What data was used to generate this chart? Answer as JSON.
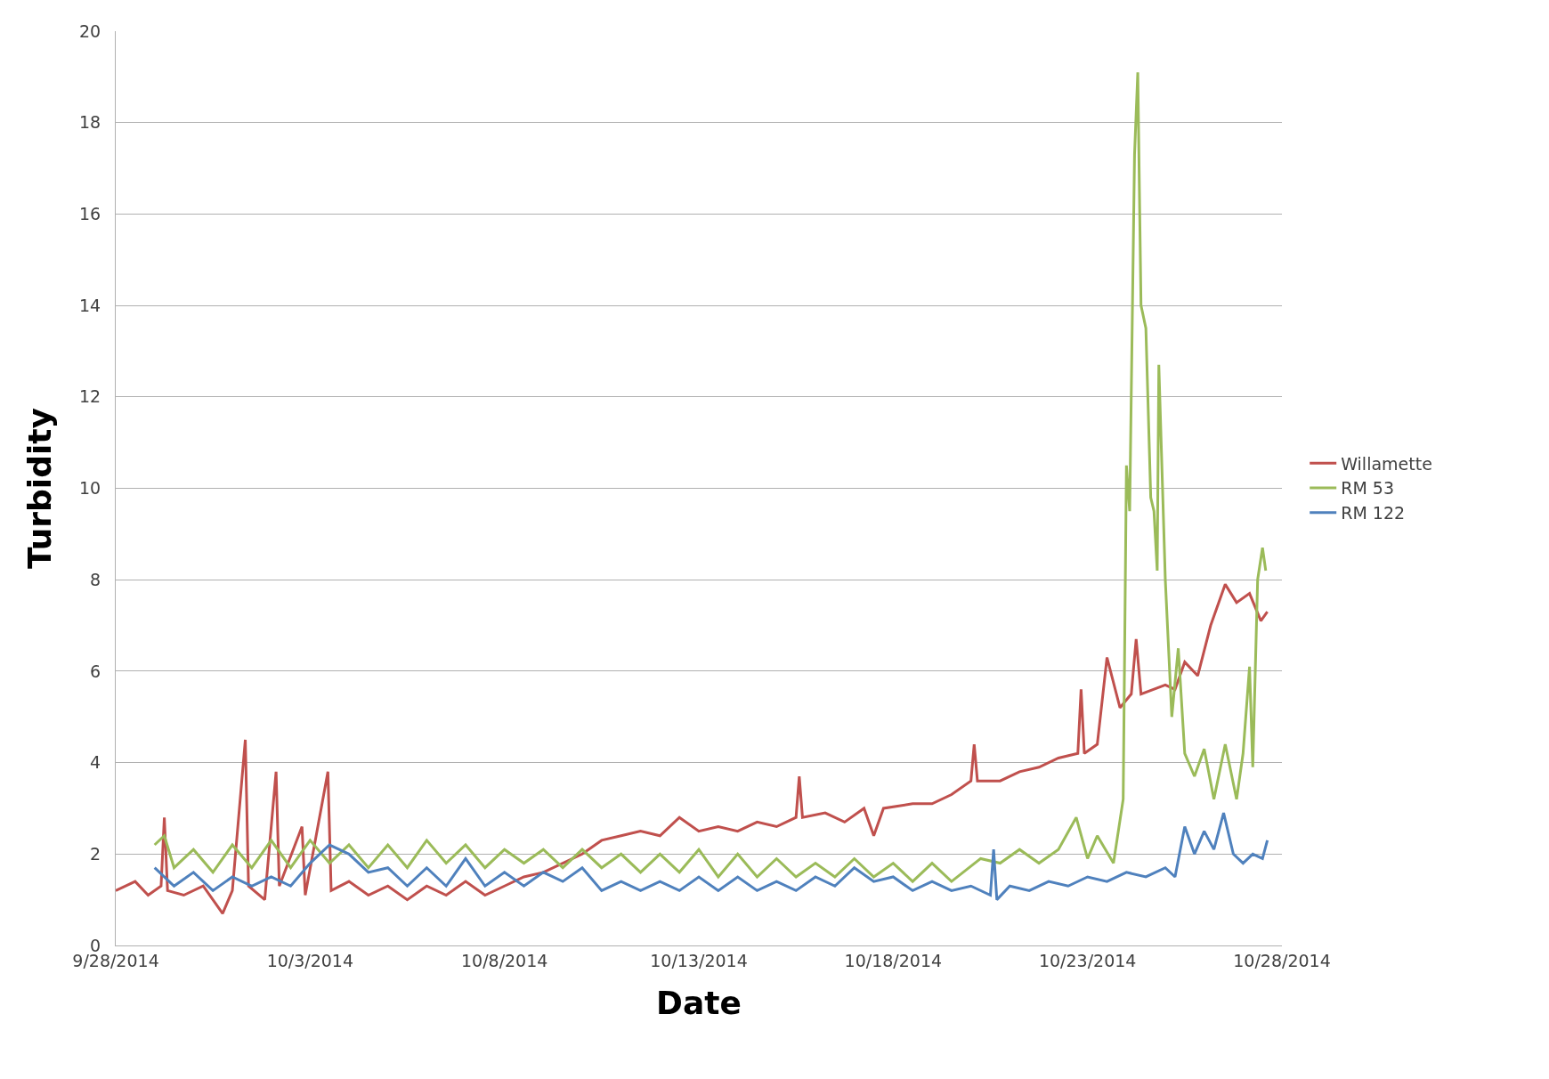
{
  "chart_data": {
    "type": "line",
    "xlabel": "Date",
    "ylabel": "Turbidity",
    "xlim": [
      "2014-09-28",
      "2014-10-28"
    ],
    "xticks": [
      {
        "value": "2014-09-28",
        "label": "9/28/2014"
      },
      {
        "value": "2014-10-03",
        "label": "10/3/2014"
      },
      {
        "value": "2014-10-08",
        "label": "10/8/2014"
      },
      {
        "value": "2014-10-13",
        "label": "10/13/2014"
      },
      {
        "value": "2014-10-18",
        "label": "10/18/2014"
      },
      {
        "value": "2014-10-23",
        "label": "10/23/2014"
      },
      {
        "value": "2014-10-28",
        "label": "10/28/2014"
      }
    ],
    "ylim": [
      0,
      20
    ],
    "yticks": [
      0,
      2,
      4,
      6,
      8,
      10,
      12,
      14,
      16,
      18,
      20
    ],
    "grid": "y",
    "legend": "right",
    "marker": "none",
    "line_style": "solid",
    "series": [
      {
        "name": "Willamette",
        "color": "#c0504d",
        "x": [
          "2014-09-28T00:00",
          "2014-09-28T12:00",
          "2014-09-28T20:00",
          "2014-09-29T04:00",
          "2014-09-29T06:00",
          "2014-09-29T08:00",
          "2014-09-29T18:00",
          "2014-09-30T06:00",
          "2014-09-30T18:00",
          "2014-10-01T00:00",
          "2014-10-01T08:00",
          "2014-10-01T10:00",
          "2014-10-01T20:00",
          "2014-10-02T03:00",
          "2014-10-02T05:00",
          "2014-10-02T19:00",
          "2014-10-02T21:00",
          "2014-10-03T11:00",
          "2014-10-03T13:00",
          "2014-10-04T00:00",
          "2014-10-04T12:00",
          "2014-10-05T00:00",
          "2014-10-05T12:00",
          "2014-10-06T00:00",
          "2014-10-06T12:00",
          "2014-10-07T00:00",
          "2014-10-07T12:00",
          "2014-10-08T00:00",
          "2014-10-08T12:00",
          "2014-10-09T00:00",
          "2014-10-09T12:00",
          "2014-10-10T00:00",
          "2014-10-10T12:00",
          "2014-10-11T00:00",
          "2014-10-11T12:00",
          "2014-10-12T00:00",
          "2014-10-12T12:00",
          "2014-10-13T00:00",
          "2014-10-13T12:00",
          "2014-10-14T00:00",
          "2014-10-14T12:00",
          "2014-10-15T00:00",
          "2014-10-15T12:00",
          "2014-10-15T14:00",
          "2014-10-15T16:00",
          "2014-10-16T06:00",
          "2014-10-16T18:00",
          "2014-10-17T06:00",
          "2014-10-17T12:00",
          "2014-10-17T18:00",
          "2014-10-18T12:00",
          "2014-10-19T00:00",
          "2014-10-19T12:00",
          "2014-10-20T00:00",
          "2014-10-20T02:00",
          "2014-10-20T04:00",
          "2014-10-20T18:00",
          "2014-10-21T06:00",
          "2014-10-21T18:00",
          "2014-10-22T06:00",
          "2014-10-22T18:00",
          "2014-10-22T20:00",
          "2014-10-22T22:00",
          "2014-10-23T06:00",
          "2014-10-23T12:00",
          "2014-10-23T20:00",
          "2014-10-24T03:00",
          "2014-10-24T06:00",
          "2014-10-24T09:00",
          "2014-10-25T00:00",
          "2014-10-25T06:00",
          "2014-10-25T12:00",
          "2014-10-25T20:00",
          "2014-10-26T04:00",
          "2014-10-26T13:00",
          "2014-10-26T20:00",
          "2014-10-27T04:00",
          "2014-10-27T11:00",
          "2014-10-27T15:00"
        ],
        "values": [
          1.2,
          1.4,
          1.1,
          1.3,
          2.8,
          1.2,
          1.1,
          1.3,
          0.7,
          1.2,
          4.5,
          1.3,
          1.0,
          3.8,
          1.3,
          2.6,
          1.1,
          3.8,
          1.2,
          1.4,
          1.1,
          1.3,
          1.0,
          1.3,
          1.1,
          1.4,
          1.1,
          1.3,
          1.5,
          1.6,
          1.8,
          2.0,
          2.3,
          2.4,
          2.5,
          2.4,
          2.8,
          2.5,
          2.6,
          2.5,
          2.7,
          2.6,
          2.8,
          3.7,
          2.8,
          2.9,
          2.7,
          3.0,
          2.4,
          3.0,
          3.1,
          3.1,
          3.3,
          3.6,
          4.4,
          3.6,
          3.6,
          3.8,
          3.9,
          4.1,
          4.2,
          5.6,
          4.2,
          4.4,
          6.3,
          5.2,
          5.5,
          6.7,
          5.5,
          5.7,
          5.6,
          6.2,
          5.9,
          7.0,
          7.9,
          7.5,
          7.7,
          7.1,
          7.3
        ]
      },
      {
        "name": "RM 53",
        "color": "#9bbb59",
        "x": [
          "2014-09-29T00:00",
          "2014-09-29T06:00",
          "2014-09-29T12:00",
          "2014-09-30T00:00",
          "2014-09-30T12:00",
          "2014-10-01T00:00",
          "2014-10-01T12:00",
          "2014-10-02T00:00",
          "2014-10-02T12:00",
          "2014-10-03T00:00",
          "2014-10-03T12:00",
          "2014-10-04T00:00",
          "2014-10-04T12:00",
          "2014-10-05T00:00",
          "2014-10-05T12:00",
          "2014-10-06T00:00",
          "2014-10-06T12:00",
          "2014-10-07T00:00",
          "2014-10-07T12:00",
          "2014-10-08T00:00",
          "2014-10-08T12:00",
          "2014-10-09T00:00",
          "2014-10-09T12:00",
          "2014-10-10T00:00",
          "2014-10-10T12:00",
          "2014-10-11T00:00",
          "2014-10-11T12:00",
          "2014-10-12T00:00",
          "2014-10-12T12:00",
          "2014-10-13T00:00",
          "2014-10-13T12:00",
          "2014-10-14T00:00",
          "2014-10-14T12:00",
          "2014-10-15T00:00",
          "2014-10-15T12:00",
          "2014-10-16T00:00",
          "2014-10-16T12:00",
          "2014-10-17T00:00",
          "2014-10-17T12:00",
          "2014-10-18T00:00",
          "2014-10-18T12:00",
          "2014-10-19T00:00",
          "2014-10-19T12:00",
          "2014-10-20T06:00",
          "2014-10-20T18:00",
          "2014-10-21T06:00",
          "2014-10-21T18:00",
          "2014-10-22T06:00",
          "2014-10-22T17:00",
          "2014-10-23T00:00",
          "2014-10-23T06:00",
          "2014-10-23T16:00",
          "2014-10-23T22:00",
          "2014-10-24T00:00",
          "2014-10-24T02:00",
          "2014-10-24T05:00",
          "2014-10-24T07:00",
          "2014-10-24T09:00",
          "2014-10-24T12:00",
          "2014-10-24T15:00",
          "2014-10-24T17:00",
          "2014-10-24T19:00",
          "2014-10-24T20:00",
          "2014-10-25T00:00",
          "2014-10-25T04:00",
          "2014-10-25T08:00",
          "2014-10-25T12:00",
          "2014-10-25T18:00",
          "2014-10-26T00:00",
          "2014-10-26T06:00",
          "2014-10-26T13:00",
          "2014-10-26T20:00",
          "2014-10-27T00:00",
          "2014-10-27T04:00",
          "2014-10-27T06:00",
          "2014-10-27T09:00",
          "2014-10-27T12:00",
          "2014-10-27T14:00"
        ],
        "values": [
          2.2,
          2.4,
          1.7,
          2.1,
          1.6,
          2.2,
          1.7,
          2.3,
          1.7,
          2.3,
          1.8,
          2.2,
          1.7,
          2.2,
          1.7,
          2.3,
          1.8,
          2.2,
          1.7,
          2.1,
          1.8,
          2.1,
          1.7,
          2.1,
          1.7,
          2.0,
          1.6,
          2.0,
          1.6,
          2.1,
          1.5,
          2.0,
          1.5,
          1.9,
          1.5,
          1.8,
          1.5,
          1.9,
          1.5,
          1.8,
          1.4,
          1.8,
          1.4,
          1.9,
          1.8,
          2.1,
          1.8,
          2.1,
          2.8,
          1.9,
          2.4,
          1.8,
          3.2,
          10.5,
          9.5,
          17.3,
          19.1,
          14.0,
          13.5,
          9.8,
          9.5,
          8.2,
          12.7,
          8.0,
          5.0,
          6.5,
          4.2,
          3.7,
          4.3,
          3.2,
          4.4,
          3.2,
          4.2,
          6.1,
          3.9,
          8.0,
          8.7,
          8.2
        ]
      },
      {
        "name": "RM 122",
        "color": "#4f81bd",
        "x": [
          "2014-09-29T00:00",
          "2014-09-29T12:00",
          "2014-09-30T00:00",
          "2014-09-30T12:00",
          "2014-10-01T00:00",
          "2014-10-01T12:00",
          "2014-10-02T00:00",
          "2014-10-02T12:00",
          "2014-10-03T00:00",
          "2014-10-03T12:00",
          "2014-10-04T00:00",
          "2014-10-04T12:00",
          "2014-10-05T00:00",
          "2014-10-05T12:00",
          "2014-10-06T00:00",
          "2014-10-06T12:00",
          "2014-10-07T00:00",
          "2014-10-07T12:00",
          "2014-10-08T00:00",
          "2014-10-08T12:00",
          "2014-10-09T00:00",
          "2014-10-09T12:00",
          "2014-10-10T00:00",
          "2014-10-10T12:00",
          "2014-10-11T00:00",
          "2014-10-11T12:00",
          "2014-10-12T00:00",
          "2014-10-12T12:00",
          "2014-10-13T00:00",
          "2014-10-13T12:00",
          "2014-10-14T00:00",
          "2014-10-14T12:00",
          "2014-10-15T00:00",
          "2014-10-15T12:00",
          "2014-10-16T00:00",
          "2014-10-16T12:00",
          "2014-10-17T00:00",
          "2014-10-17T12:00",
          "2014-10-18T00:00",
          "2014-10-18T12:00",
          "2014-10-19T00:00",
          "2014-10-19T12:00",
          "2014-10-20T00:00",
          "2014-10-20T12:00",
          "2014-10-20T14:00",
          "2014-10-20T16:00",
          "2014-10-21T00:00",
          "2014-10-21T12:00",
          "2014-10-22T00:00",
          "2014-10-22T12:00",
          "2014-10-23T00:00",
          "2014-10-23T12:00",
          "2014-10-24T00:00",
          "2014-10-24T12:00",
          "2014-10-25T00:00",
          "2014-10-25T06:00",
          "2014-10-25T12:00",
          "2014-10-25T18:00",
          "2014-10-26T00:00",
          "2014-10-26T06:00",
          "2014-10-26T12:00",
          "2014-10-26T18:00",
          "2014-10-27T00:00",
          "2014-10-27T06:00",
          "2014-10-27T12:00",
          "2014-10-27T15:00"
        ],
        "values": [
          1.7,
          1.3,
          1.6,
          1.2,
          1.5,
          1.3,
          1.5,
          1.3,
          1.8,
          2.2,
          2.0,
          1.6,
          1.7,
          1.3,
          1.7,
          1.3,
          1.9,
          1.3,
          1.6,
          1.3,
          1.6,
          1.4,
          1.7,
          1.2,
          1.4,
          1.2,
          1.4,
          1.2,
          1.5,
          1.2,
          1.5,
          1.2,
          1.4,
          1.2,
          1.5,
          1.3,
          1.7,
          1.4,
          1.5,
          1.2,
          1.4,
          1.2,
          1.3,
          1.1,
          2.1,
          1.0,
          1.3,
          1.2,
          1.4,
          1.3,
          1.5,
          1.4,
          1.6,
          1.5,
          1.7,
          1.5,
          2.6,
          2.0,
          2.5,
          2.1,
          2.9,
          2.0,
          1.8,
          2.0,
          1.9,
          2.3
        ]
      }
    ]
  }
}
